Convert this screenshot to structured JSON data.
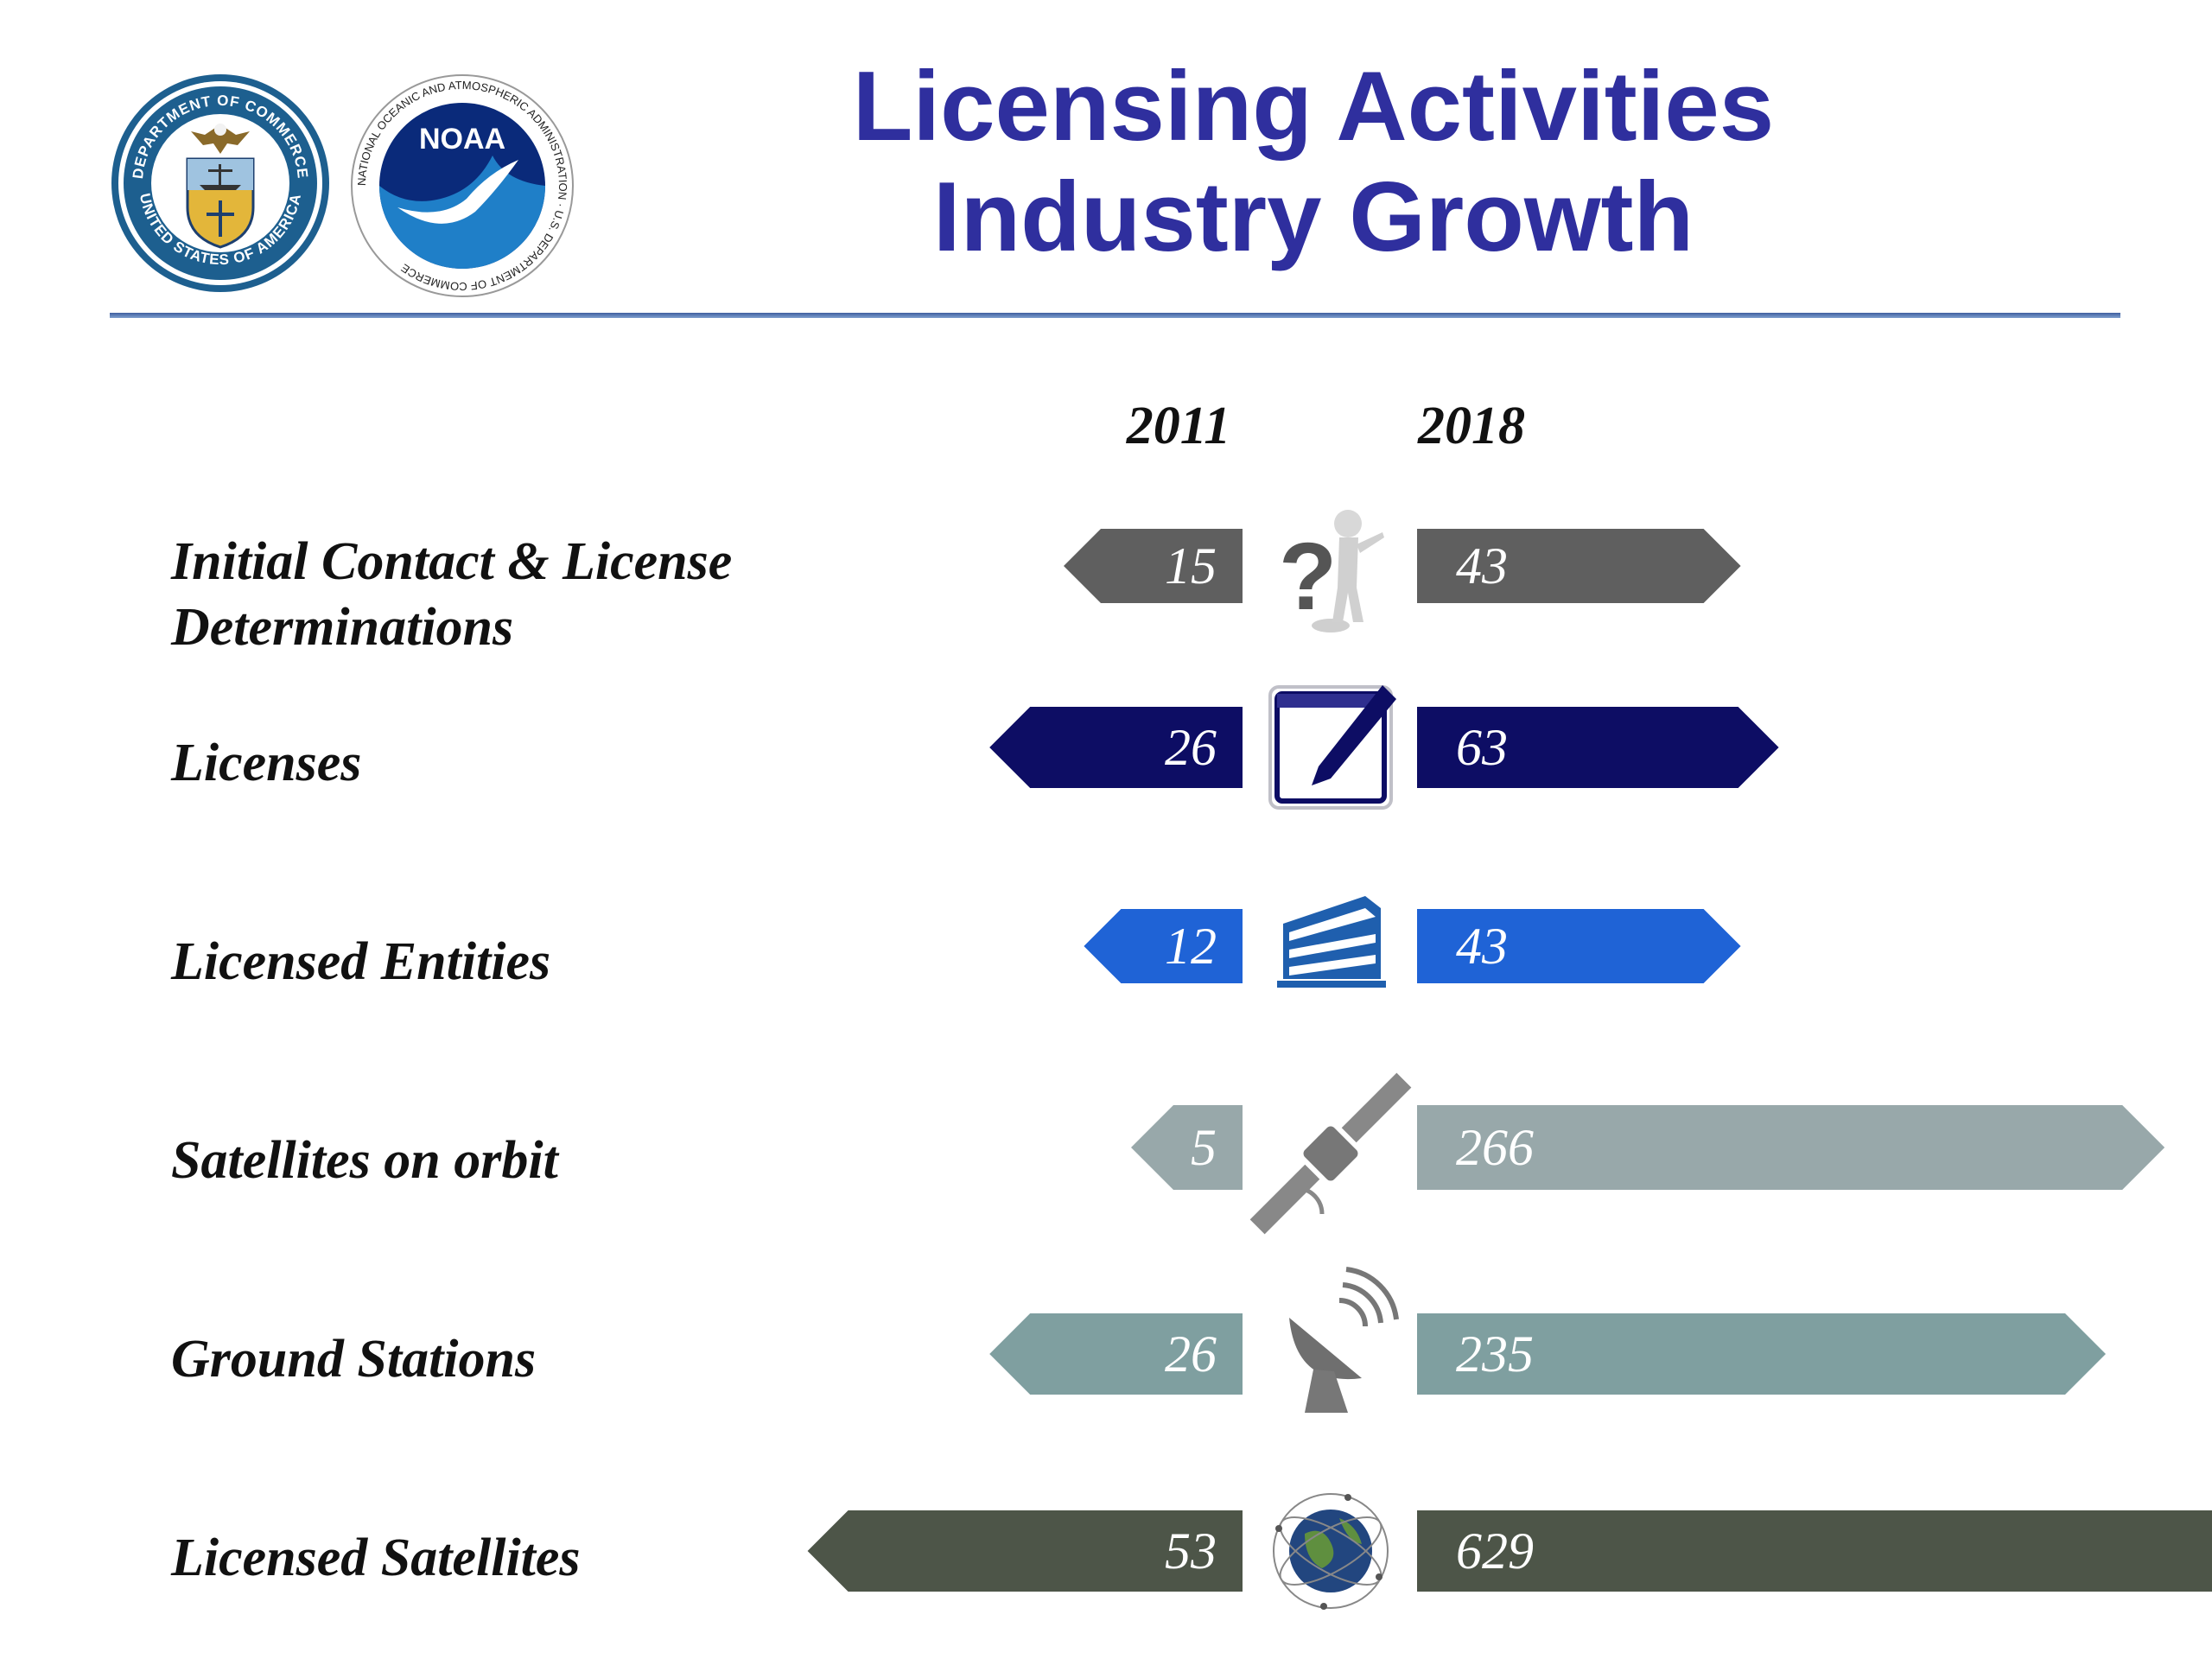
{
  "header": {
    "title_line1": "Licensing Activities",
    "title_line2": "Industry Growth",
    "logo_left_icon": "department-of-commerce-seal",
    "logo_left_text_top": "DEPARTMENT OF COMMERCE",
    "logo_left_text_bottom": "UNITED STATES OF AMERICA",
    "logo_right_icon": "noaa-logo",
    "logo_right_wordmark": "NOAA",
    "logo_right_text": "NATIONAL OCEANIC AND ATMOSPHERIC ADMINISTRATION · U.S. DEPARTMENT OF COMMERCE"
  },
  "chart_data": {
    "type": "bar",
    "title": "Licensing Activities Industry Growth",
    "categories": [
      "Initial Contact & License Determinations",
      "Licenses",
      "Licensed Entities",
      "Satellites on orbit",
      "Ground Stations",
      "Licensed Satellites"
    ],
    "series": [
      {
        "name": "2011",
        "values": [
          15,
          26,
          12,
          5,
          26,
          53
        ]
      },
      {
        "name": "2018",
        "values": [
          43,
          63,
          43,
          266,
          235,
          629
        ]
      }
    ],
    "colors": [
      "#5f5f5f",
      "#0d0d64",
      "#1f63d6",
      "#98a8aa",
      "#7f9fa0",
      "#4d5548"
    ],
    "icons": [
      "question-figure-icon",
      "edit-pencil-icon",
      "office-building-icon",
      "satellite-icon",
      "satellite-dish-icon",
      "globe-satellites-icon"
    ]
  }
}
